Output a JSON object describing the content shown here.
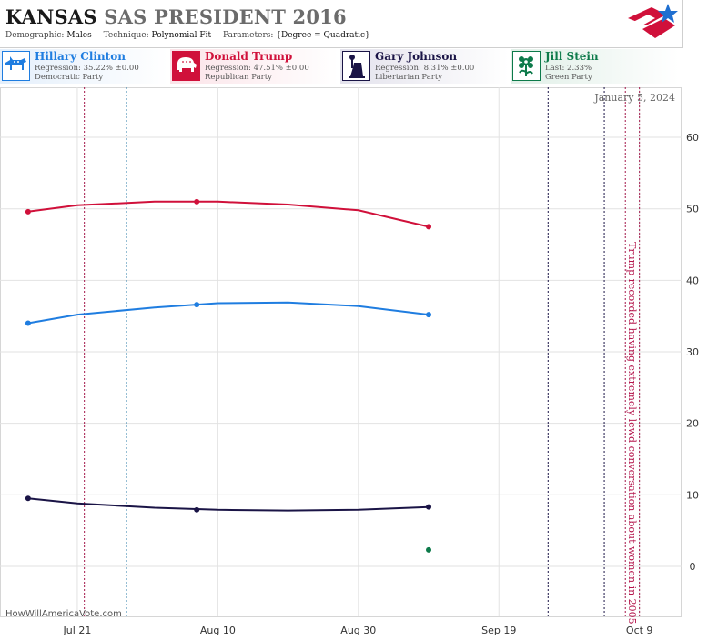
{
  "header": {
    "state": "KANSAS",
    "rest": "SAS PRESIDENT 2016",
    "demographic_label": "Demographic:",
    "demographic_value": "Males",
    "technique_label": "Technique:",
    "technique_value": "Polynomial Fit",
    "parameters_label": "Parameters:",
    "parameters_value": "{Degree = Quadratic}"
  },
  "candidates": [
    {
      "name": "Hillary Clinton",
      "line1": "Regression: 35.22% ±0.00",
      "line2": "Democratic Party",
      "color": "#1f7de0",
      "icon": "donkey-icon"
    },
    {
      "name": "Donald Trump",
      "line1": "Regression: 47.51% ±0.00",
      "line2": "Republican Party",
      "color": "#d0103a",
      "icon": "elephant-icon"
    },
    {
      "name": "Gary Johnson",
      "line1": "Regression: 8.31% ±0.00",
      "line2": "Libertarian Party",
      "color": "#1a1446",
      "icon": "liberty-torch-icon"
    },
    {
      "name": "Jill Stein",
      "line1": "Last: 2.33%",
      "line2": "Green Party",
      "color": "#0d7a4a",
      "icon": "green-flower-icon"
    }
  ],
  "chart_data": {
    "type": "line",
    "date_label": "January 5, 2024",
    "credit": "HowWillAmericaVote.com",
    "x_ticks": [
      "Jul 21",
      "Aug 10",
      "Aug 30",
      "Sep 19",
      "Oct 9"
    ],
    "x_tick_dates": [
      "2016-07-21",
      "2016-08-10",
      "2016-08-30",
      "2016-09-19",
      "2016-10-09"
    ],
    "xlim": [
      "2016-07-10",
      "2016-10-15"
    ],
    "y_ticks": [
      0,
      10,
      20,
      30,
      40,
      50,
      60
    ],
    "ylim": [
      -7,
      67
    ],
    "series": [
      {
        "name": "Hillary Clinton",
        "color": "#1f7de0",
        "points": [
          [
            "2016-07-14",
            34.0
          ],
          [
            "2016-08-07",
            36.6
          ],
          [
            "2016-09-09",
            35.2
          ]
        ],
        "fit": [
          [
            "2016-07-14",
            34.0
          ],
          [
            "2016-07-21",
            35.2
          ],
          [
            "2016-08-01",
            36.2
          ],
          [
            "2016-08-10",
            36.8
          ],
          [
            "2016-08-20",
            36.9
          ],
          [
            "2016-08-30",
            36.4
          ],
          [
            "2016-09-09",
            35.2
          ]
        ]
      },
      {
        "name": "Donald Trump",
        "color": "#d0103a",
        "points": [
          [
            "2016-07-14",
            49.6
          ],
          [
            "2016-08-07",
            51.0
          ],
          [
            "2016-09-09",
            47.5
          ]
        ],
        "fit": [
          [
            "2016-07-14",
            49.6
          ],
          [
            "2016-07-21",
            50.5
          ],
          [
            "2016-08-01",
            51.0
          ],
          [
            "2016-08-10",
            51.0
          ],
          [
            "2016-08-20",
            50.6
          ],
          [
            "2016-08-30",
            49.8
          ],
          [
            "2016-09-09",
            47.5
          ]
        ]
      },
      {
        "name": "Gary Johnson",
        "color": "#1a1446",
        "points": [
          [
            "2016-07-14",
            9.5
          ],
          [
            "2016-08-07",
            7.9
          ],
          [
            "2016-09-09",
            8.3
          ]
        ],
        "fit": [
          [
            "2016-07-14",
            9.5
          ],
          [
            "2016-07-21",
            8.8
          ],
          [
            "2016-08-01",
            8.2
          ],
          [
            "2016-08-10",
            7.9
          ],
          [
            "2016-08-20",
            7.8
          ],
          [
            "2016-08-30",
            7.9
          ],
          [
            "2016-09-09",
            8.3
          ]
        ]
      },
      {
        "name": "Jill Stein",
        "color": "#0d7a4a",
        "points": [
          [
            "2016-09-09",
            2.3
          ]
        ],
        "fit": []
      }
    ],
    "vlines": [
      {
        "date": "2016-07-22",
        "color": "#a3174a"
      },
      {
        "date": "2016-07-28",
        "color": "#2a7aa8"
      },
      {
        "date": "2016-09-26",
        "color": "#1a1446"
      },
      {
        "date": "2016-10-04",
        "color": "#1a1446"
      },
      {
        "date": "2016-10-07",
        "color": "#a3174a"
      },
      {
        "date": "2016-10-09",
        "color": "#a3174a"
      }
    ],
    "annotation": {
      "date": "2016-10-07",
      "text": "Trump recorded having extremely lewd conversation about women in 2005",
      "color": "#b5174d"
    }
  }
}
